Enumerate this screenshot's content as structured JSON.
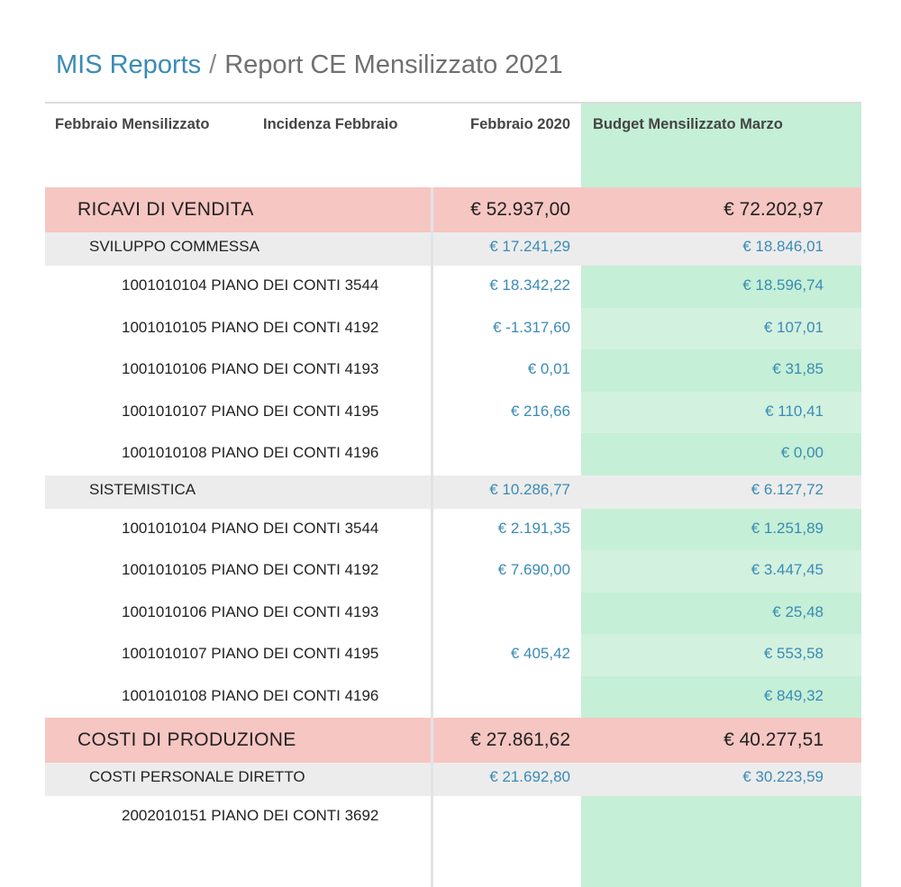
{
  "breadcrumb": {
    "root": "MIS Reports",
    "separator": "/",
    "current": "Report CE Mensilizzato 2021"
  },
  "columns": {
    "c1": "Febbraio Mensilizzato",
    "c2": "Incidenza Febbraio",
    "c3": "Febbraio 2020",
    "c4": "Budget Mensilizzato Marzo"
  },
  "rows": [
    {
      "type": "section",
      "label": "RICAVI DI VENDITA",
      "v1": "€ 52.937,00",
      "v2": "€ 72.202,97"
    },
    {
      "type": "group",
      "label": "SVILUPPO COMMESSA",
      "v1": "€ 17.241,29",
      "v2": "€ 18.846,01"
    },
    {
      "type": "item",
      "label": "1001010104 PIANO DEI CONTI 3544",
      "v1": "€ 18.342,22",
      "v2": "€ 18.596,74"
    },
    {
      "type": "item",
      "label": "1001010105 PIANO DEI CONTI 4192",
      "v1": "€ -1.317,60",
      "v2": "€ 107,01"
    },
    {
      "type": "item",
      "label": "1001010106 PIANO DEI CONTI 4193",
      "v1": "€ 0,01",
      "v2": "€ 31,85"
    },
    {
      "type": "item",
      "label": "1001010107 PIANO DEI CONTI 4195",
      "v1": "€ 216,66",
      "v2": "€ 110,41"
    },
    {
      "type": "item",
      "label": "1001010108 PIANO DEI CONTI 4196",
      "v1": "",
      "v2": "€ 0,00"
    },
    {
      "type": "group",
      "label": "SISTEMISTICA",
      "v1": "€ 10.286,77",
      "v2": "€ 6.127,72"
    },
    {
      "type": "item",
      "label": "1001010104 PIANO DEI CONTI 3544",
      "v1": "€ 2.191,35",
      "v2": "€ 1.251,89"
    },
    {
      "type": "item",
      "label": "1001010105 PIANO DEI CONTI 4192",
      "v1": "€ 7.690,00",
      "v2": "€ 3.447,45"
    },
    {
      "type": "item",
      "label": "1001010106 PIANO DEI CONTI 4193",
      "v1": "",
      "v2": "€ 25,48"
    },
    {
      "type": "item",
      "label": "1001010107 PIANO DEI CONTI 4195",
      "v1": "€ 405,42",
      "v2": "€ 553,58"
    },
    {
      "type": "item",
      "label": "1001010108 PIANO DEI CONTI 4196",
      "v1": "",
      "v2": "€ 849,32"
    },
    {
      "type": "section",
      "label": "COSTI DI PRODUZIONE",
      "v1": "€ 27.861,62",
      "v2": "€ 40.277,51"
    },
    {
      "type": "group",
      "label": "COSTI PERSONALE DIRETTO",
      "v1": "€ 21.692,80",
      "v2": "€ 30.223,59"
    },
    {
      "type": "item",
      "label": "2002010151 PIANO DEI CONTI 3692",
      "v1": "",
      "v2": ""
    }
  ],
  "colors": {
    "link": "#3a8bb5",
    "section_bg": "#f6c6c2",
    "group_bg": "#ececec",
    "budget_bg": "#c5efd6"
  }
}
